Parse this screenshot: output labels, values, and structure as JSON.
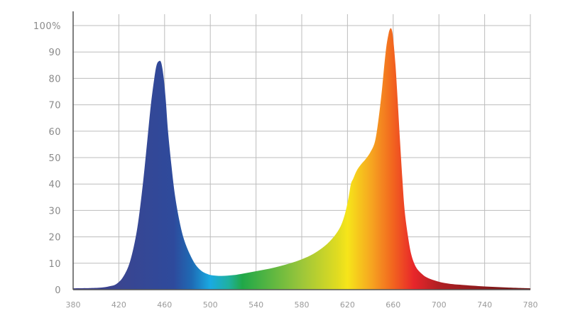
{
  "chart_data": {
    "type": "area",
    "xlim": [
      380,
      780
    ],
    "ylim": [
      0,
      100
    ],
    "grid": true,
    "x_ticks": [
      "380",
      "420",
      "460",
      "500",
      "540",
      "580",
      "620",
      "660",
      "700",
      "740",
      "780"
    ],
    "y_ticks": [
      "0",
      "10",
      "20",
      "30",
      "40",
      "50",
      "60",
      "70",
      "80",
      "90",
      "100%"
    ],
    "series": [
      {
        "x": [
          380,
          395,
          405,
          412,
          418,
          424,
          430,
          436,
          441,
          445,
          448,
          451,
          453,
          455,
          457,
          459,
          461,
          463,
          466,
          469,
          473,
          477,
          482,
          487,
          492,
          497,
          502,
          510,
          520,
          530,
          540,
          550,
          560,
          570,
          580,
          590,
          600,
          608,
          614,
          618,
          621,
          623,
          625,
          628,
          632,
          636,
          640,
          644,
          647,
          650,
          652,
          654,
          656,
          657,
          658,
          659,
          660,
          662,
          664,
          666,
          668,
          670,
          673,
          676,
          680,
          685,
          690,
          700,
          710,
          720,
          740,
          760,
          780
        ],
        "y": [
          0.5,
          0.6,
          0.8,
          1.3,
          2.2,
          5,
          11,
          23,
          40,
          57,
          70,
          80,
          85,
          86.5,
          86,
          81,
          72,
          60,
          47,
          36,
          26,
          19,
          13.5,
          9.5,
          7.2,
          6,
          5.4,
          5.2,
          5.5,
          6.2,
          7,
          7.8,
          8.8,
          10,
          11.5,
          13.5,
          16.5,
          20,
          24,
          29,
          35,
          40,
          42,
          45,
          47.5,
          49.5,
          52,
          56,
          64,
          75,
          84,
          92,
          97,
          98.5,
          99,
          98,
          95,
          85,
          71,
          56,
          42,
          30,
          20,
          13,
          8.5,
          6,
          4.5,
          3,
          2.2,
          1.8,
          1.2,
          0.8,
          0.5
        ]
      }
    ],
    "colors": {
      "blue": "#2e4a9c",
      "cyan": "#1aaae2",
      "green": "#20a848",
      "yellow": "#f3e51a",
      "orange": "#f27a20",
      "red": "#e8262a",
      "dark_red": "#7a1a1a"
    }
  }
}
